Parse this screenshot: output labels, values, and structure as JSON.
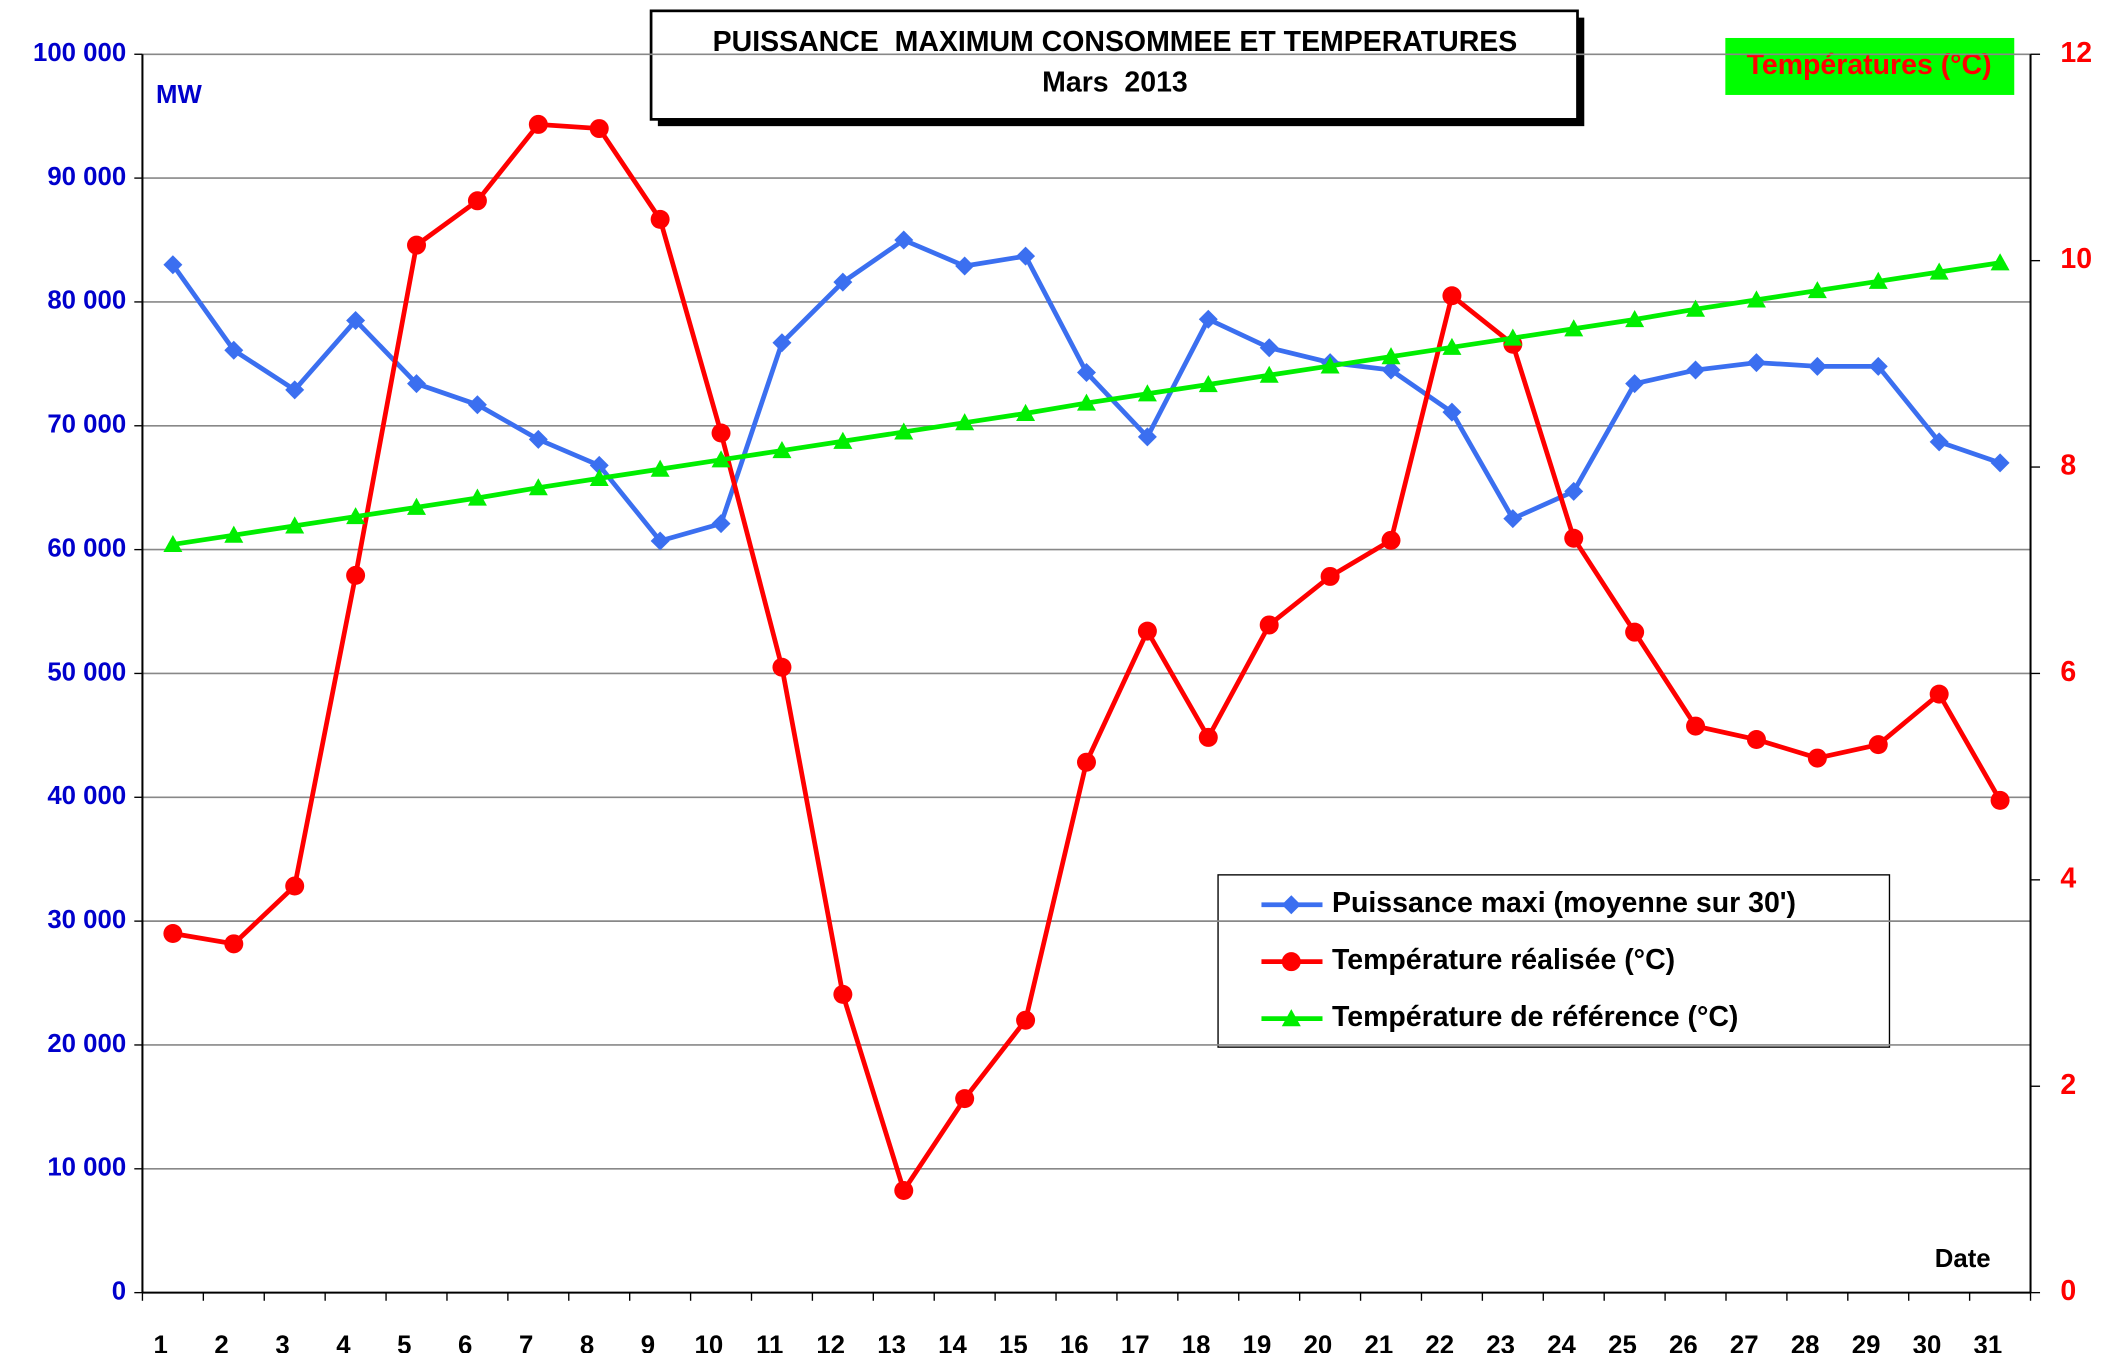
{
  "chart_data": {
    "type": "line",
    "title": "PUISSANCE  MAXIMUM CONSOMMEE ET TEMPERATURES",
    "subtitle": "Mars  2013",
    "y_label": "MW",
    "y2_label": "Températures (°C)",
    "x_label": "Date",
    "categories": [
      "1",
      "2",
      "3",
      "4",
      "5",
      "6",
      "7",
      "8",
      "9",
      "10",
      "11",
      "12",
      "13",
      "14",
      "15",
      "16",
      "17",
      "18",
      "19",
      "20",
      "21",
      "22",
      "23",
      "24",
      "25",
      "26",
      "27",
      "28",
      "29",
      "30",
      "31"
    ],
    "series": [
      {
        "name": "Puissance maxi (moyenne sur 30')",
        "color": "#3b6ff0",
        "marker": "diamond",
        "values": [
          83000,
          76100,
          72900,
          78500,
          73400,
          71700,
          68900,
          66800,
          60700,
          62100,
          76700,
          81600,
          85000,
          82900,
          83700,
          74300,
          69100,
          78600,
          76300,
          75100,
          74500,
          71100,
          62500,
          64700,
          73400,
          74500,
          75100,
          74800,
          74800,
          68700,
          67000
        ]
      },
      {
        "name": "Température réalisée (°C)",
        "color": "#ff0000",
        "marker": "circle",
        "axis": "y2",
        "values": [
          3.48,
          3.38,
          3.94,
          6.95,
          10.15,
          10.58,
          11.32,
          11.28,
          10.4,
          8.33,
          6.06,
          2.89,
          0.99,
          1.88,
          2.64,
          5.14,
          6.41,
          5.38,
          6.47,
          6.94,
          7.29,
          9.66,
          9.19,
          7.31,
          6.4,
          5.49,
          5.36,
          5.18,
          5.31,
          5.8,
          4.77
        ]
      },
      {
        "name": "Température de référence (°C)",
        "color": "#00ee00",
        "marker": "triangle",
        "axis": "y2",
        "values": [
          7.25,
          7.34,
          7.43,
          7.52,
          7.61,
          7.7,
          7.8,
          7.89,
          7.98,
          8.07,
          8.16,
          8.25,
          8.34,
          8.43,
          8.52,
          8.62,
          8.71,
          8.8,
          8.89,
          8.98,
          9.07,
          9.16,
          9.25,
          9.34,
          9.43,
          9.53,
          9.62,
          9.71,
          9.8,
          9.89,
          9.98
        ]
      }
    ],
    "ylim": [
      0,
      100000
    ],
    "yticks": [
      0,
      {
        "value": 10000,
        "label": "10 000"
      },
      {
        "value": 20000,
        "label": "20 000"
      },
      {
        "value": 30000,
        "label": "30 000"
      },
      {
        "value": 40000,
        "label": "40 000"
      },
      {
        "value": 50000,
        "label": "50 000"
      },
      {
        "value": 60000,
        "label": "60 000"
      },
      {
        "value": 70000,
        "label": "70 000"
      },
      {
        "value": 80000,
        "label": "80 000"
      },
      {
        "value": 90000,
        "label": "90 000"
      },
      {
        "value": 100000,
        "label": "100 000"
      }
    ],
    "y2lim": [
      0,
      12
    ],
    "y2ticks": [
      0,
      2,
      4,
      6,
      8,
      10,
      12
    ],
    "grid": true
  }
}
